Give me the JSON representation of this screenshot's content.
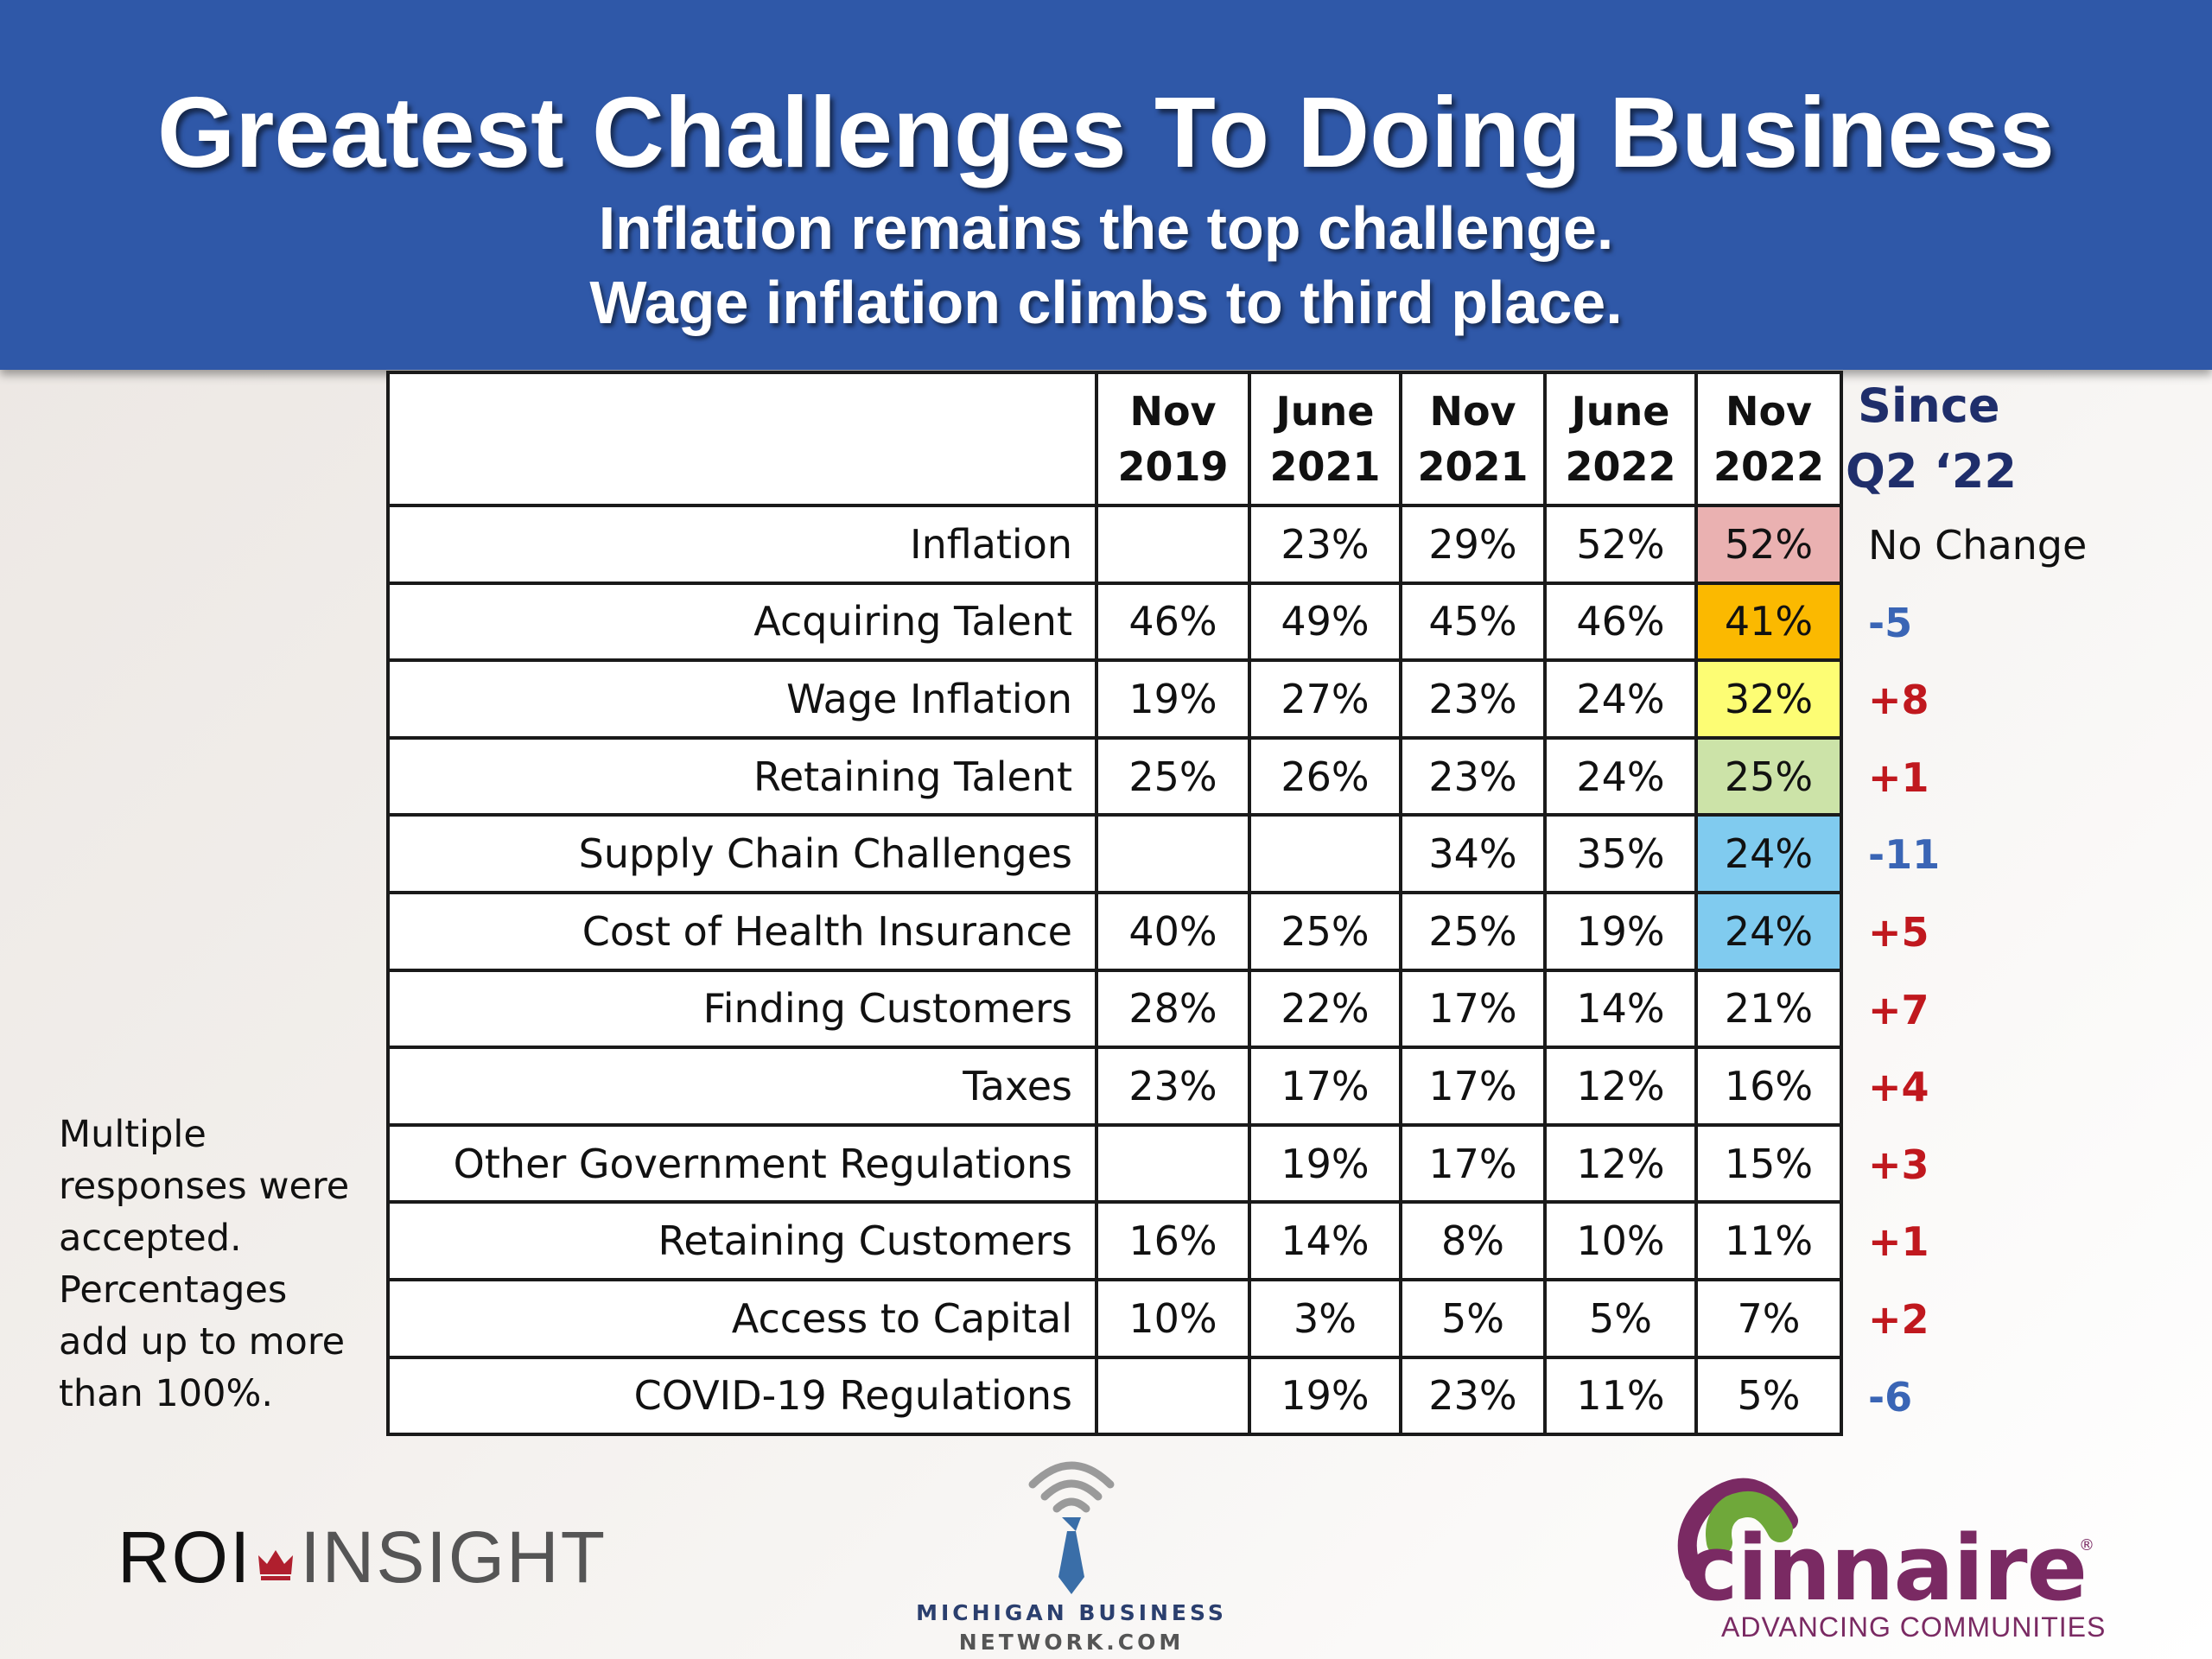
{
  "header": {
    "title": "Greatest Challenges To Doing Business",
    "subtitle_line1": "Inflation remains the top challenge.",
    "subtitle_line2": "Wage inflation climbs to third place."
  },
  "chart_data": {
    "type": "table",
    "title": "Greatest Challenges To Doing Business",
    "columns": [
      {
        "line1": "Nov",
        "line2": "2019"
      },
      {
        "line1": "June",
        "line2": "2021"
      },
      {
        "line1": "Nov",
        "line2": "2021"
      },
      {
        "line1": "June",
        "line2": "2022"
      },
      {
        "line1": "Nov",
        "line2": "2022"
      }
    ],
    "since_header": {
      "line1": "Since",
      "line2": "Q2 ‘22"
    },
    "rows": [
      {
        "label": "Inflation",
        "values": [
          "",
          "23%",
          "29%",
          "52%",
          "52%"
        ],
        "highlight": "#eab1b1",
        "change": "No Change",
        "change_color": "#111111"
      },
      {
        "label": "Acquiring Talent",
        "values": [
          "46%",
          "49%",
          "45%",
          "46%",
          "41%"
        ],
        "highlight": "#fbb900",
        "change": "-5",
        "change_color": "#3a65b5"
      },
      {
        "label": "Wage Inflation",
        "values": [
          "19%",
          "27%",
          "23%",
          "24%",
          "32%"
        ],
        "highlight": "#fdfd74",
        "change": "+8",
        "change_color": "#c0181e"
      },
      {
        "label": "Retaining Talent",
        "values": [
          "25%",
          "26%",
          "23%",
          "24%",
          "25%"
        ],
        "highlight": "#cce3a8",
        "change": "+1",
        "change_color": "#c0181e"
      },
      {
        "label": "Supply Chain Challenges",
        "values": [
          "",
          "",
          "34%",
          "35%",
          "24%"
        ],
        "highlight": "#80cbef",
        "change": "-11",
        "change_color": "#3a65b5"
      },
      {
        "label": "Cost of Health Insurance",
        "values": [
          "40%",
          "25%",
          "25%",
          "19%",
          "24%"
        ],
        "highlight": "#80cbef",
        "change": "+5",
        "change_color": "#c0181e"
      },
      {
        "label": "Finding Customers",
        "values": [
          "28%",
          "22%",
          "17%",
          "14%",
          "21%"
        ],
        "highlight": "",
        "change": "+7",
        "change_color": "#c0181e"
      },
      {
        "label": "Taxes",
        "values": [
          "23%",
          "17%",
          "17%",
          "12%",
          "16%"
        ],
        "highlight": "",
        "change": "+4",
        "change_color": "#c0181e"
      },
      {
        "label": "Other Government Regulations",
        "values": [
          "",
          "19%",
          "17%",
          "12%",
          "15%"
        ],
        "highlight": "",
        "change": "+3",
        "change_color": "#c0181e"
      },
      {
        "label": "Retaining Customers",
        "values": [
          "16%",
          "14%",
          "8%",
          "10%",
          "11%"
        ],
        "highlight": "",
        "change": "+1",
        "change_color": "#c0181e"
      },
      {
        "label": "Access to Capital",
        "values": [
          "10%",
          "3%",
          "5%",
          "5%",
          "7%"
        ],
        "highlight": "",
        "change": "+2",
        "change_color": "#c0181e"
      },
      {
        "label": "COVID-19 Regulations",
        "values": [
          "",
          "19%",
          "23%",
          "11%",
          "5%"
        ],
        "highlight": "",
        "change": "-6",
        "change_color": "#3a65b5"
      }
    ]
  },
  "note": {
    "lines": [
      "Multiple",
      "responses were",
      "accepted.",
      "Percentages",
      "add up to more",
      "than 100%."
    ]
  },
  "logos": {
    "roi_part1": "ROI",
    "roi_part2": "INSIGHT",
    "mbn_line1": "MICHIGAN BUSINESS",
    "mbn_line2": "NETWORK.COM",
    "cinnaire_word": "cinnaire",
    "cinnaire_reg": "®",
    "cinnaire_tagline": "ADVANCING COMMUNITIES"
  }
}
